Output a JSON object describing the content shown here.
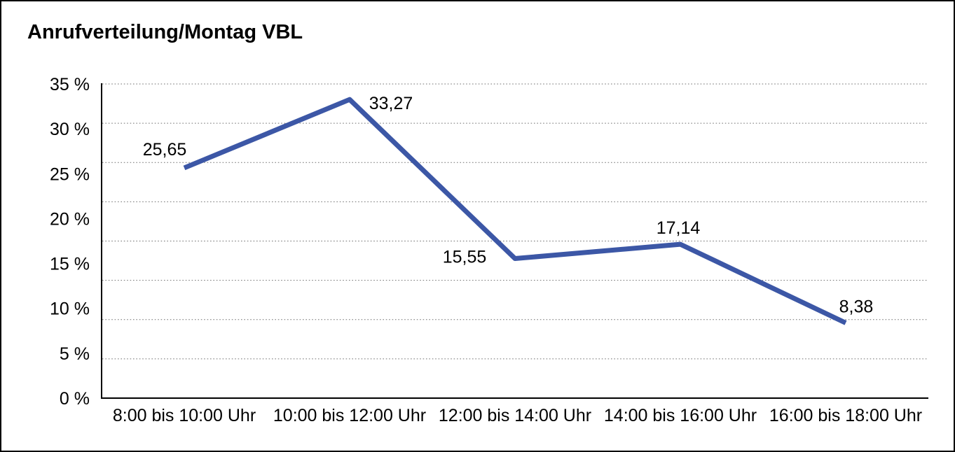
{
  "title": "Anrufverteilung/Montag VBL",
  "colors": {
    "line": "#3C57A6",
    "grid": "#707070",
    "axis": "#000000",
    "text": "#000000",
    "background": "#ffffff",
    "frame_border": "#000000"
  },
  "chart_data": {
    "type": "line",
    "title": "Anrufverteilung/Montag VBL",
    "categories": [
      "8:00 bis 10:00 Uhr",
      "10:00 bis 12:00 Uhr",
      "12:00 bis 14:00 Uhr",
      "14:00 bis 16:00 Uhr",
      "16:00 bis 18:00 Uhr"
    ],
    "series": [
      {
        "values": [
          25.65,
          33.27,
          15.55,
          17.14,
          8.38
        ],
        "point_labels": [
          "25,65",
          "33,27",
          "15,55",
          "17,14",
          "8,38"
        ],
        "color": "#3C57A6"
      }
    ],
    "xlabel": "",
    "ylabel": "",
    "ylim": [
      0,
      35
    ],
    "ytick_step": 5,
    "ytick_labels": [
      "0 %",
      "5 %",
      "10 %",
      "15 %",
      "20 %",
      "25 %",
      "30 %",
      "35 %"
    ],
    "grid": "horizontal-dotted",
    "grid_divisions": 8,
    "legend": "none",
    "decimal_separator": ","
  }
}
